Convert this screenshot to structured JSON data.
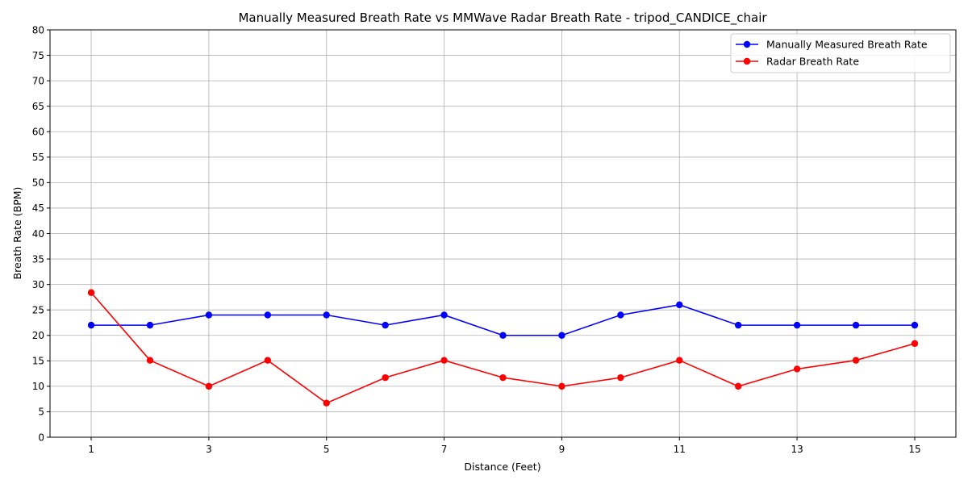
{
  "chart_data": {
    "type": "line",
    "title": "Manually Measured Breath Rate vs MMWave Radar Breath Rate - tripod_CANDICE_chair",
    "xlabel": "Distance (Feet)",
    "ylabel": "Breath Rate (BPM)",
    "x": [
      1,
      2,
      3,
      4,
      5,
      6,
      7,
      8,
      9,
      10,
      11,
      12,
      13,
      14,
      15
    ],
    "xticks": [
      1,
      3,
      5,
      7,
      9,
      11,
      13,
      15
    ],
    "xlim": [
      0.3,
      15.7
    ],
    "ylim": [
      0,
      80
    ],
    "yticks": [
      0,
      5,
      10,
      15,
      20,
      25,
      30,
      35,
      40,
      45,
      50,
      55,
      60,
      65,
      70,
      75,
      80
    ],
    "grid": true,
    "legend_position": "top-right",
    "series": [
      {
        "name": "Manually Measured Breath Rate",
        "color": "#0000ff",
        "marker": "circle",
        "values": [
          22,
          22,
          24,
          24,
          24,
          22,
          24,
          20,
          20,
          24,
          26,
          22,
          22,
          22,
          22
        ]
      },
      {
        "name": "Radar Breath Rate",
        "color": "#ff0000",
        "marker": "circle",
        "values": [
          28.4,
          15.1,
          10.0,
          15.1,
          6.7,
          11.7,
          15.1,
          11.7,
          10.0,
          11.7,
          15.1,
          10.0,
          13.4,
          15.1,
          18.4
        ]
      }
    ]
  }
}
